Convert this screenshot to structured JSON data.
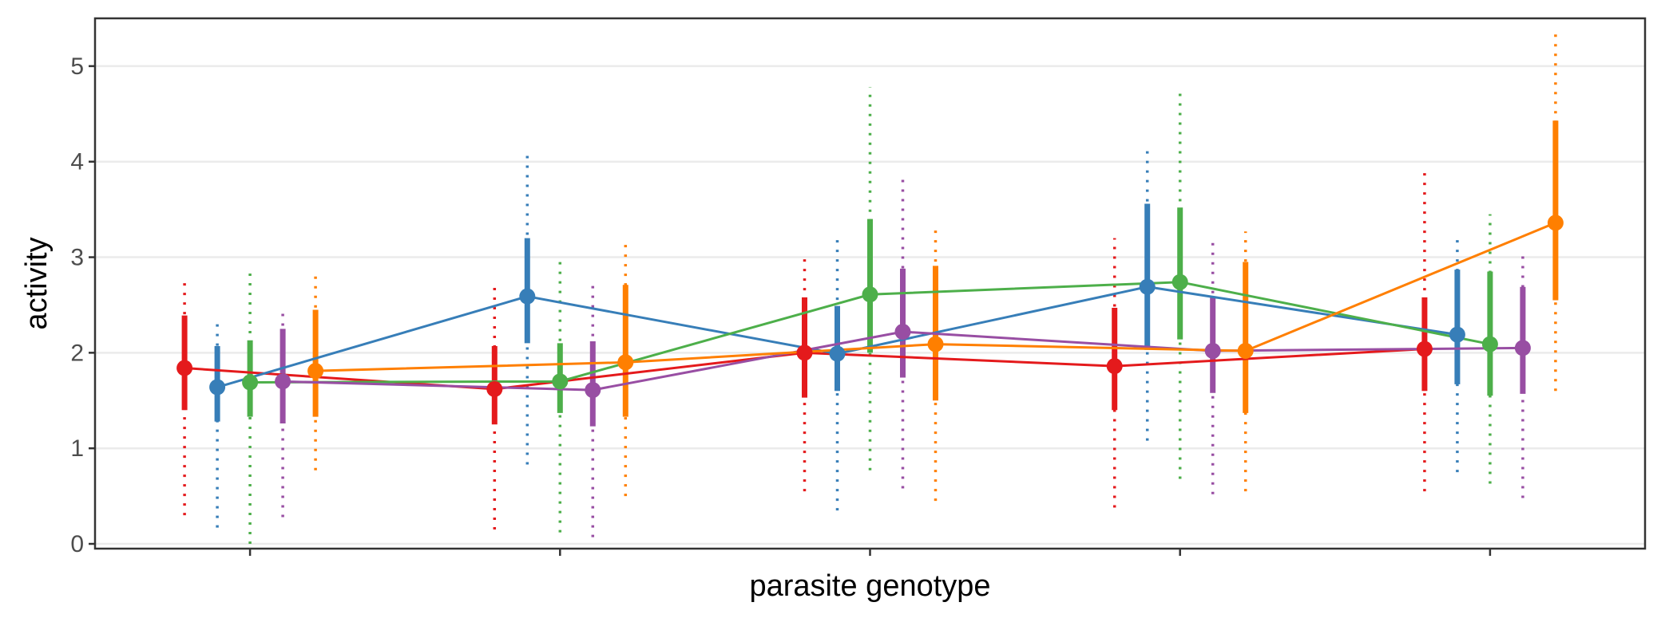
{
  "chart_data": {
    "type": "line",
    "title": "",
    "xlabel": "parasite genotype",
    "ylabel": "activity",
    "ylim": [
      -0.05,
      5.5
    ],
    "yticks": [
      0,
      1,
      2,
      3,
      4,
      5
    ],
    "categories": [
      "",
      "",
      "",
      "",
      ""
    ],
    "grid": "horizontal major",
    "legend": "none",
    "interval_styles": {
      "inner": "solid thick",
      "outer": "dotted thin"
    },
    "series": [
      {
        "color": "#E41A1C",
        "points": [
          {
            "y": 1.84,
            "inner": [
              1.4,
              2.39
            ],
            "outer": [
              0.3,
              2.73
            ]
          },
          {
            "y": 1.62,
            "inner": [
              1.25,
              2.07
            ],
            "outer": [
              0.15,
              2.73
            ]
          },
          {
            "y": 2.0,
            "inner": [
              1.53,
              2.58
            ],
            "outer": [
              0.55,
              3.0
            ]
          },
          {
            "y": 1.86,
            "inner": [
              1.4,
              2.47
            ],
            "outer": [
              0.38,
              3.2
            ]
          },
          {
            "y": 2.04,
            "inner": [
              1.6,
              2.58
            ],
            "outer": [
              0.55,
              3.92
            ]
          }
        ]
      },
      {
        "color": "#377EB8",
        "points": [
          {
            "y": 1.64,
            "inner": [
              1.28,
              2.07
            ],
            "outer": [
              0.17,
              2.33
            ]
          },
          {
            "y": 2.59,
            "inner": [
              2.1,
              3.2
            ],
            "outer": [
              0.83,
              4.07
            ]
          },
          {
            "y": 1.99,
            "inner": [
              1.6,
              2.49
            ],
            "outer": [
              0.35,
              3.18
            ]
          },
          {
            "y": 2.69,
            "inner": [
              2.03,
              3.56
            ],
            "outer": [
              1.08,
              4.16
            ]
          },
          {
            "y": 2.19,
            "inner": [
              1.67,
              2.87
            ],
            "outer": [
              0.75,
              3.2
            ]
          }
        ]
      },
      {
        "color": "#4DAF4A",
        "points": [
          {
            "y": 1.69,
            "inner": [
              1.33,
              2.13
            ],
            "outer": [
              0.0,
              2.87
            ]
          },
          {
            "y": 1.7,
            "inner": [
              1.37,
              2.1
            ],
            "outer": [
              0.12,
              2.97
            ]
          },
          {
            "y": 2.61,
            "inner": [
              2.0,
              3.4
            ],
            "outer": [
              0.77,
              4.78
            ]
          },
          {
            "y": 2.74,
            "inner": [
              2.14,
              3.52
            ],
            "outer": [
              0.68,
              4.73
            ]
          },
          {
            "y": 2.09,
            "inner": [
              1.55,
              2.85
            ],
            "outer": [
              0.63,
              3.45
            ]
          }
        ]
      },
      {
        "color": "#984EA3",
        "points": [
          {
            "y": 1.7,
            "inner": [
              1.26,
              2.25
            ],
            "outer": [
              0.28,
              2.46
            ]
          },
          {
            "y": 1.61,
            "inner": [
              1.23,
              2.12
            ],
            "outer": [
              0.07,
              2.75
            ]
          },
          {
            "y": 2.22,
            "inner": [
              1.74,
              2.88
            ],
            "outer": [
              0.58,
              3.82
            ]
          },
          {
            "y": 2.02,
            "inner": [
              1.58,
              2.58
            ],
            "outer": [
              0.52,
              3.2
            ]
          },
          {
            "y": 2.05,
            "inner": [
              1.57,
              2.69
            ],
            "outer": [
              0.48,
              3.05
            ]
          }
        ]
      },
      {
        "color": "#FF7F00",
        "points": [
          {
            "y": 1.81,
            "inner": [
              1.33,
              2.45
            ],
            "outer": [
              0.77,
              2.82
            ]
          },
          {
            "y": 1.9,
            "inner": [
              1.33,
              2.71
            ],
            "outer": [
              0.5,
              3.2
            ]
          },
          {
            "y": 2.09,
            "inner": [
              1.5,
              2.91
            ],
            "outer": [
              0.45,
              3.28
            ]
          },
          {
            "y": 2.02,
            "inner": [
              1.37,
              2.95
            ],
            "outer": [
              0.55,
              3.27
            ]
          },
          {
            "y": 3.36,
            "inner": [
              2.55,
              4.43
            ],
            "outer": [
              1.6,
              5.37
            ]
          }
        ]
      }
    ]
  }
}
